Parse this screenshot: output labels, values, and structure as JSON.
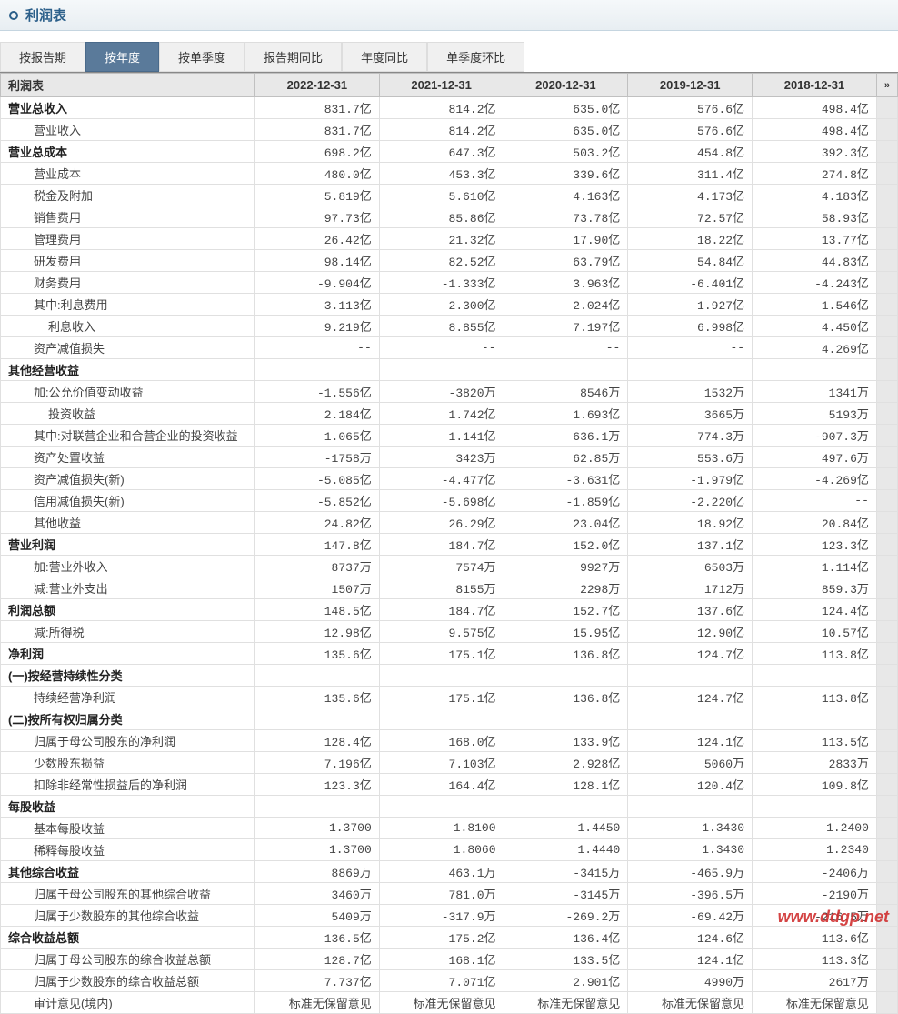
{
  "header": {
    "title": "利润表"
  },
  "tabs": [
    "按报告期",
    "按年度",
    "按单季度",
    "报告期同比",
    "年度同比",
    "单季度环比"
  ],
  "activeTab": 1,
  "table": {
    "title": "利润表",
    "columns": [
      "2022-12-31",
      "2021-12-31",
      "2020-12-31",
      "2019-12-31",
      "2018-12-31"
    ],
    "rows": [
      {
        "label": "营业总收入",
        "bold": true,
        "indent": 0,
        "v": [
          "831.7亿",
          "814.2亿",
          "635.0亿",
          "576.6亿",
          "498.4亿"
        ]
      },
      {
        "label": "营业收入",
        "bold": false,
        "indent": 1,
        "v": [
          "831.7亿",
          "814.2亿",
          "635.0亿",
          "576.6亿",
          "498.4亿"
        ]
      },
      {
        "label": "营业总成本",
        "bold": true,
        "indent": 0,
        "v": [
          "698.2亿",
          "647.3亿",
          "503.2亿",
          "454.8亿",
          "392.3亿"
        ]
      },
      {
        "label": "营业成本",
        "bold": false,
        "indent": 1,
        "v": [
          "480.0亿",
          "453.3亿",
          "339.6亿",
          "311.4亿",
          "274.8亿"
        ]
      },
      {
        "label": "税金及附加",
        "bold": false,
        "indent": 1,
        "v": [
          "5.819亿",
          "5.610亿",
          "4.163亿",
          "4.173亿",
          "4.183亿"
        ]
      },
      {
        "label": "销售费用",
        "bold": false,
        "indent": 1,
        "v": [
          "97.73亿",
          "85.86亿",
          "73.78亿",
          "72.57亿",
          "58.93亿"
        ]
      },
      {
        "label": "管理费用",
        "bold": false,
        "indent": 1,
        "v": [
          "26.42亿",
          "21.32亿",
          "17.90亿",
          "18.22亿",
          "13.77亿"
        ]
      },
      {
        "label": "研发费用",
        "bold": false,
        "indent": 1,
        "v": [
          "98.14亿",
          "82.52亿",
          "63.79亿",
          "54.84亿",
          "44.83亿"
        ]
      },
      {
        "label": "财务费用",
        "bold": false,
        "indent": 1,
        "v": [
          "-9.904亿",
          "-1.333亿",
          "3.963亿",
          "-6.401亿",
          "-4.243亿"
        ]
      },
      {
        "label": "其中:利息费用",
        "bold": false,
        "indent": 1,
        "v": [
          "3.113亿",
          "2.300亿",
          "2.024亿",
          "1.927亿",
          "1.546亿"
        ]
      },
      {
        "label": "利息收入",
        "bold": false,
        "indent": 2,
        "v": [
          "9.219亿",
          "8.855亿",
          "7.197亿",
          "6.998亿",
          "4.450亿"
        ]
      },
      {
        "label": "资产减值损失",
        "bold": false,
        "indent": 1,
        "v": [
          "--",
          "--",
          "--",
          "--",
          "4.269亿"
        ]
      },
      {
        "label": "其他经营收益",
        "bold": true,
        "indent": 0,
        "v": [
          "",
          "",
          "",
          "",
          ""
        ]
      },
      {
        "label": "加:公允价值变动收益",
        "bold": false,
        "indent": 1,
        "v": [
          "-1.556亿",
          "-3820万",
          "8546万",
          "1532万",
          "1341万"
        ]
      },
      {
        "label": "投资收益",
        "bold": false,
        "indent": 2,
        "v": [
          "2.184亿",
          "1.742亿",
          "1.693亿",
          "3665万",
          "5193万"
        ]
      },
      {
        "label": "其中:对联营企业和合营企业的投资收益",
        "bold": false,
        "indent": 1,
        "v": [
          "1.065亿",
          "1.141亿",
          "636.1万",
          "774.3万",
          "-907.3万"
        ]
      },
      {
        "label": "资产处置收益",
        "bold": false,
        "indent": 1,
        "v": [
          "-1758万",
          "3423万",
          "62.85万",
          "553.6万",
          "497.6万"
        ]
      },
      {
        "label": "资产减值损失(新)",
        "bold": false,
        "indent": 1,
        "v": [
          "-5.085亿",
          "-4.477亿",
          "-3.631亿",
          "-1.979亿",
          "-4.269亿"
        ]
      },
      {
        "label": "信用减值损失(新)",
        "bold": false,
        "indent": 1,
        "v": [
          "-5.852亿",
          "-5.698亿",
          "-1.859亿",
          "-2.220亿",
          "--"
        ]
      },
      {
        "label": "其他收益",
        "bold": false,
        "indent": 1,
        "v": [
          "24.82亿",
          "26.29亿",
          "23.04亿",
          "18.92亿",
          "20.84亿"
        ]
      },
      {
        "label": "营业利润",
        "bold": true,
        "indent": 0,
        "v": [
          "147.8亿",
          "184.7亿",
          "152.0亿",
          "137.1亿",
          "123.3亿"
        ]
      },
      {
        "label": "加:营业外收入",
        "bold": false,
        "indent": 1,
        "v": [
          "8737万",
          "7574万",
          "9927万",
          "6503万",
          "1.114亿"
        ]
      },
      {
        "label": "减:营业外支出",
        "bold": false,
        "indent": 1,
        "v": [
          "1507万",
          "8155万",
          "2298万",
          "1712万",
          "859.3万"
        ]
      },
      {
        "label": "利润总额",
        "bold": true,
        "indent": 0,
        "v": [
          "148.5亿",
          "184.7亿",
          "152.7亿",
          "137.6亿",
          "124.4亿"
        ]
      },
      {
        "label": "减:所得税",
        "bold": false,
        "indent": 1,
        "v": [
          "12.98亿",
          "9.575亿",
          "15.95亿",
          "12.90亿",
          "10.57亿"
        ]
      },
      {
        "label": "净利润",
        "bold": true,
        "indent": 0,
        "v": [
          "135.6亿",
          "175.1亿",
          "136.8亿",
          "124.7亿",
          "113.8亿"
        ]
      },
      {
        "label": "(一)按经营持续性分类",
        "bold": true,
        "indent": 0,
        "v": [
          "",
          "",
          "",
          "",
          ""
        ]
      },
      {
        "label": "持续经营净利润",
        "bold": false,
        "indent": 1,
        "v": [
          "135.6亿",
          "175.1亿",
          "136.8亿",
          "124.7亿",
          "113.8亿"
        ]
      },
      {
        "label": "(二)按所有权归属分类",
        "bold": true,
        "indent": 0,
        "v": [
          "",
          "",
          "",
          "",
          ""
        ]
      },
      {
        "label": "归属于母公司股东的净利润",
        "bold": false,
        "indent": 1,
        "v": [
          "128.4亿",
          "168.0亿",
          "133.9亿",
          "124.1亿",
          "113.5亿"
        ]
      },
      {
        "label": "少数股东损益",
        "bold": false,
        "indent": 1,
        "v": [
          "7.196亿",
          "7.103亿",
          "2.928亿",
          "5060万",
          "2833万"
        ]
      },
      {
        "label": "扣除非经常性损益后的净利润",
        "bold": false,
        "indent": 1,
        "v": [
          "123.3亿",
          "164.4亿",
          "128.1亿",
          "120.4亿",
          "109.8亿"
        ]
      },
      {
        "label": "每股收益",
        "bold": true,
        "indent": 0,
        "v": [
          "",
          "",
          "",
          "",
          ""
        ]
      },
      {
        "label": "基本每股收益",
        "bold": false,
        "indent": 1,
        "v": [
          "1.3700",
          "1.8100",
          "1.4450",
          "1.3430",
          "1.2400"
        ]
      },
      {
        "label": "稀释每股收益",
        "bold": false,
        "indent": 1,
        "v": [
          "1.3700",
          "1.8060",
          "1.4440",
          "1.3430",
          "1.2340"
        ]
      },
      {
        "label": "其他综合收益",
        "bold": true,
        "indent": 0,
        "v": [
          "8869万",
          "463.1万",
          "-3415万",
          "-465.9万",
          "-2406万"
        ]
      },
      {
        "label": "归属于母公司股东的其他综合收益",
        "bold": false,
        "indent": 1,
        "v": [
          "3460万",
          "781.0万",
          "-3145万",
          "-396.5万",
          "-2190万"
        ]
      },
      {
        "label": "归属于少数股东的其他综合收益",
        "bold": false,
        "indent": 1,
        "v": [
          "5409万",
          "-317.9万",
          "-269.2万",
          "-69.42万",
          "-216.5万"
        ]
      },
      {
        "label": "综合收益总额",
        "bold": true,
        "indent": 0,
        "v": [
          "136.5亿",
          "175.2亿",
          "136.4亿",
          "124.6亿",
          "113.6亿"
        ]
      },
      {
        "label": "归属于母公司股东的综合收益总额",
        "bold": false,
        "indent": 1,
        "v": [
          "128.7亿",
          "168.1亿",
          "133.5亿",
          "124.1亿",
          "113.3亿"
        ]
      },
      {
        "label": "归属于少数股东的综合收益总额",
        "bold": false,
        "indent": 1,
        "v": [
          "7.737亿",
          "7.071亿",
          "2.901亿",
          "4990万",
          "2617万"
        ]
      },
      {
        "label": "审计意见(境内)",
        "bold": false,
        "indent": 1,
        "v": [
          "标准无保留意见",
          "标准无保留意见",
          "标准无保留意见",
          "标准无保留意见",
          "标准无保留意见"
        ]
      }
    ]
  },
  "watermark": "www.ddgp.net"
}
